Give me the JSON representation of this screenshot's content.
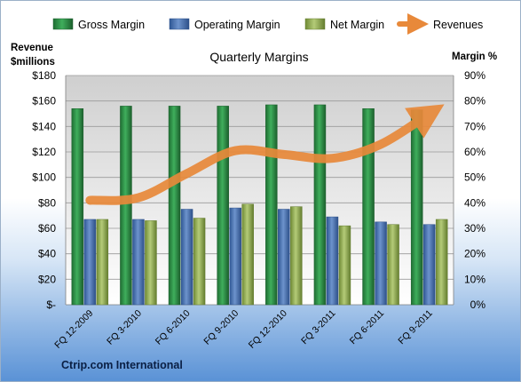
{
  "chart_data": {
    "type": "bar",
    "title": "Quarterly Margins",
    "categories": [
      "FQ 12-2009",
      "FQ 3-2010",
      "FQ 6-2010",
      "FQ 9-2010",
      "FQ 12-2010",
      "FQ 3-2011",
      "FQ 6-2011",
      "FQ 9-2011"
    ],
    "left_axis": {
      "label_line1": "Revenue",
      "label_line2": "$millions",
      "ticks": [
        "$-",
        "$20",
        "$40",
        "$60",
        "$80",
        "$100",
        "$120",
        "$140",
        "$160",
        "$180"
      ],
      "ylim": [
        0,
        180
      ]
    },
    "right_axis": {
      "label": "Margin %",
      "ticks": [
        "0%",
        "10%",
        "20%",
        "30%",
        "40%",
        "50%",
        "60%",
        "70%",
        "80%",
        "90%"
      ],
      "ylim": [
        0,
        90
      ]
    },
    "series": [
      {
        "name": "Gross Margin",
        "axis": "right",
        "values": [
          77,
          78,
          78,
          78,
          78.5,
          78.5,
          77,
          76.5
        ],
        "color": "#2e8b45"
      },
      {
        "name": "Operating Margin",
        "axis": "right",
        "values": [
          33.5,
          33.5,
          37.5,
          38,
          37.5,
          34.5,
          32.5,
          31.5
        ],
        "color": "#4a72b0"
      },
      {
        "name": "Net Margin",
        "axis": "right",
        "values": [
          33.5,
          33,
          34,
          39.5,
          38.5,
          31,
          31.5,
          33.5
        ],
        "color": "#9bb35a"
      },
      {
        "name": "Revenues",
        "axis": "left",
        "type": "line",
        "values": [
          82,
          84,
          103,
          121,
          118,
          115,
          126,
          150
        ],
        "color": "#e8893a"
      }
    ],
    "grid": true,
    "legend_position": "top",
    "source_label": "Ctrip.com International"
  }
}
